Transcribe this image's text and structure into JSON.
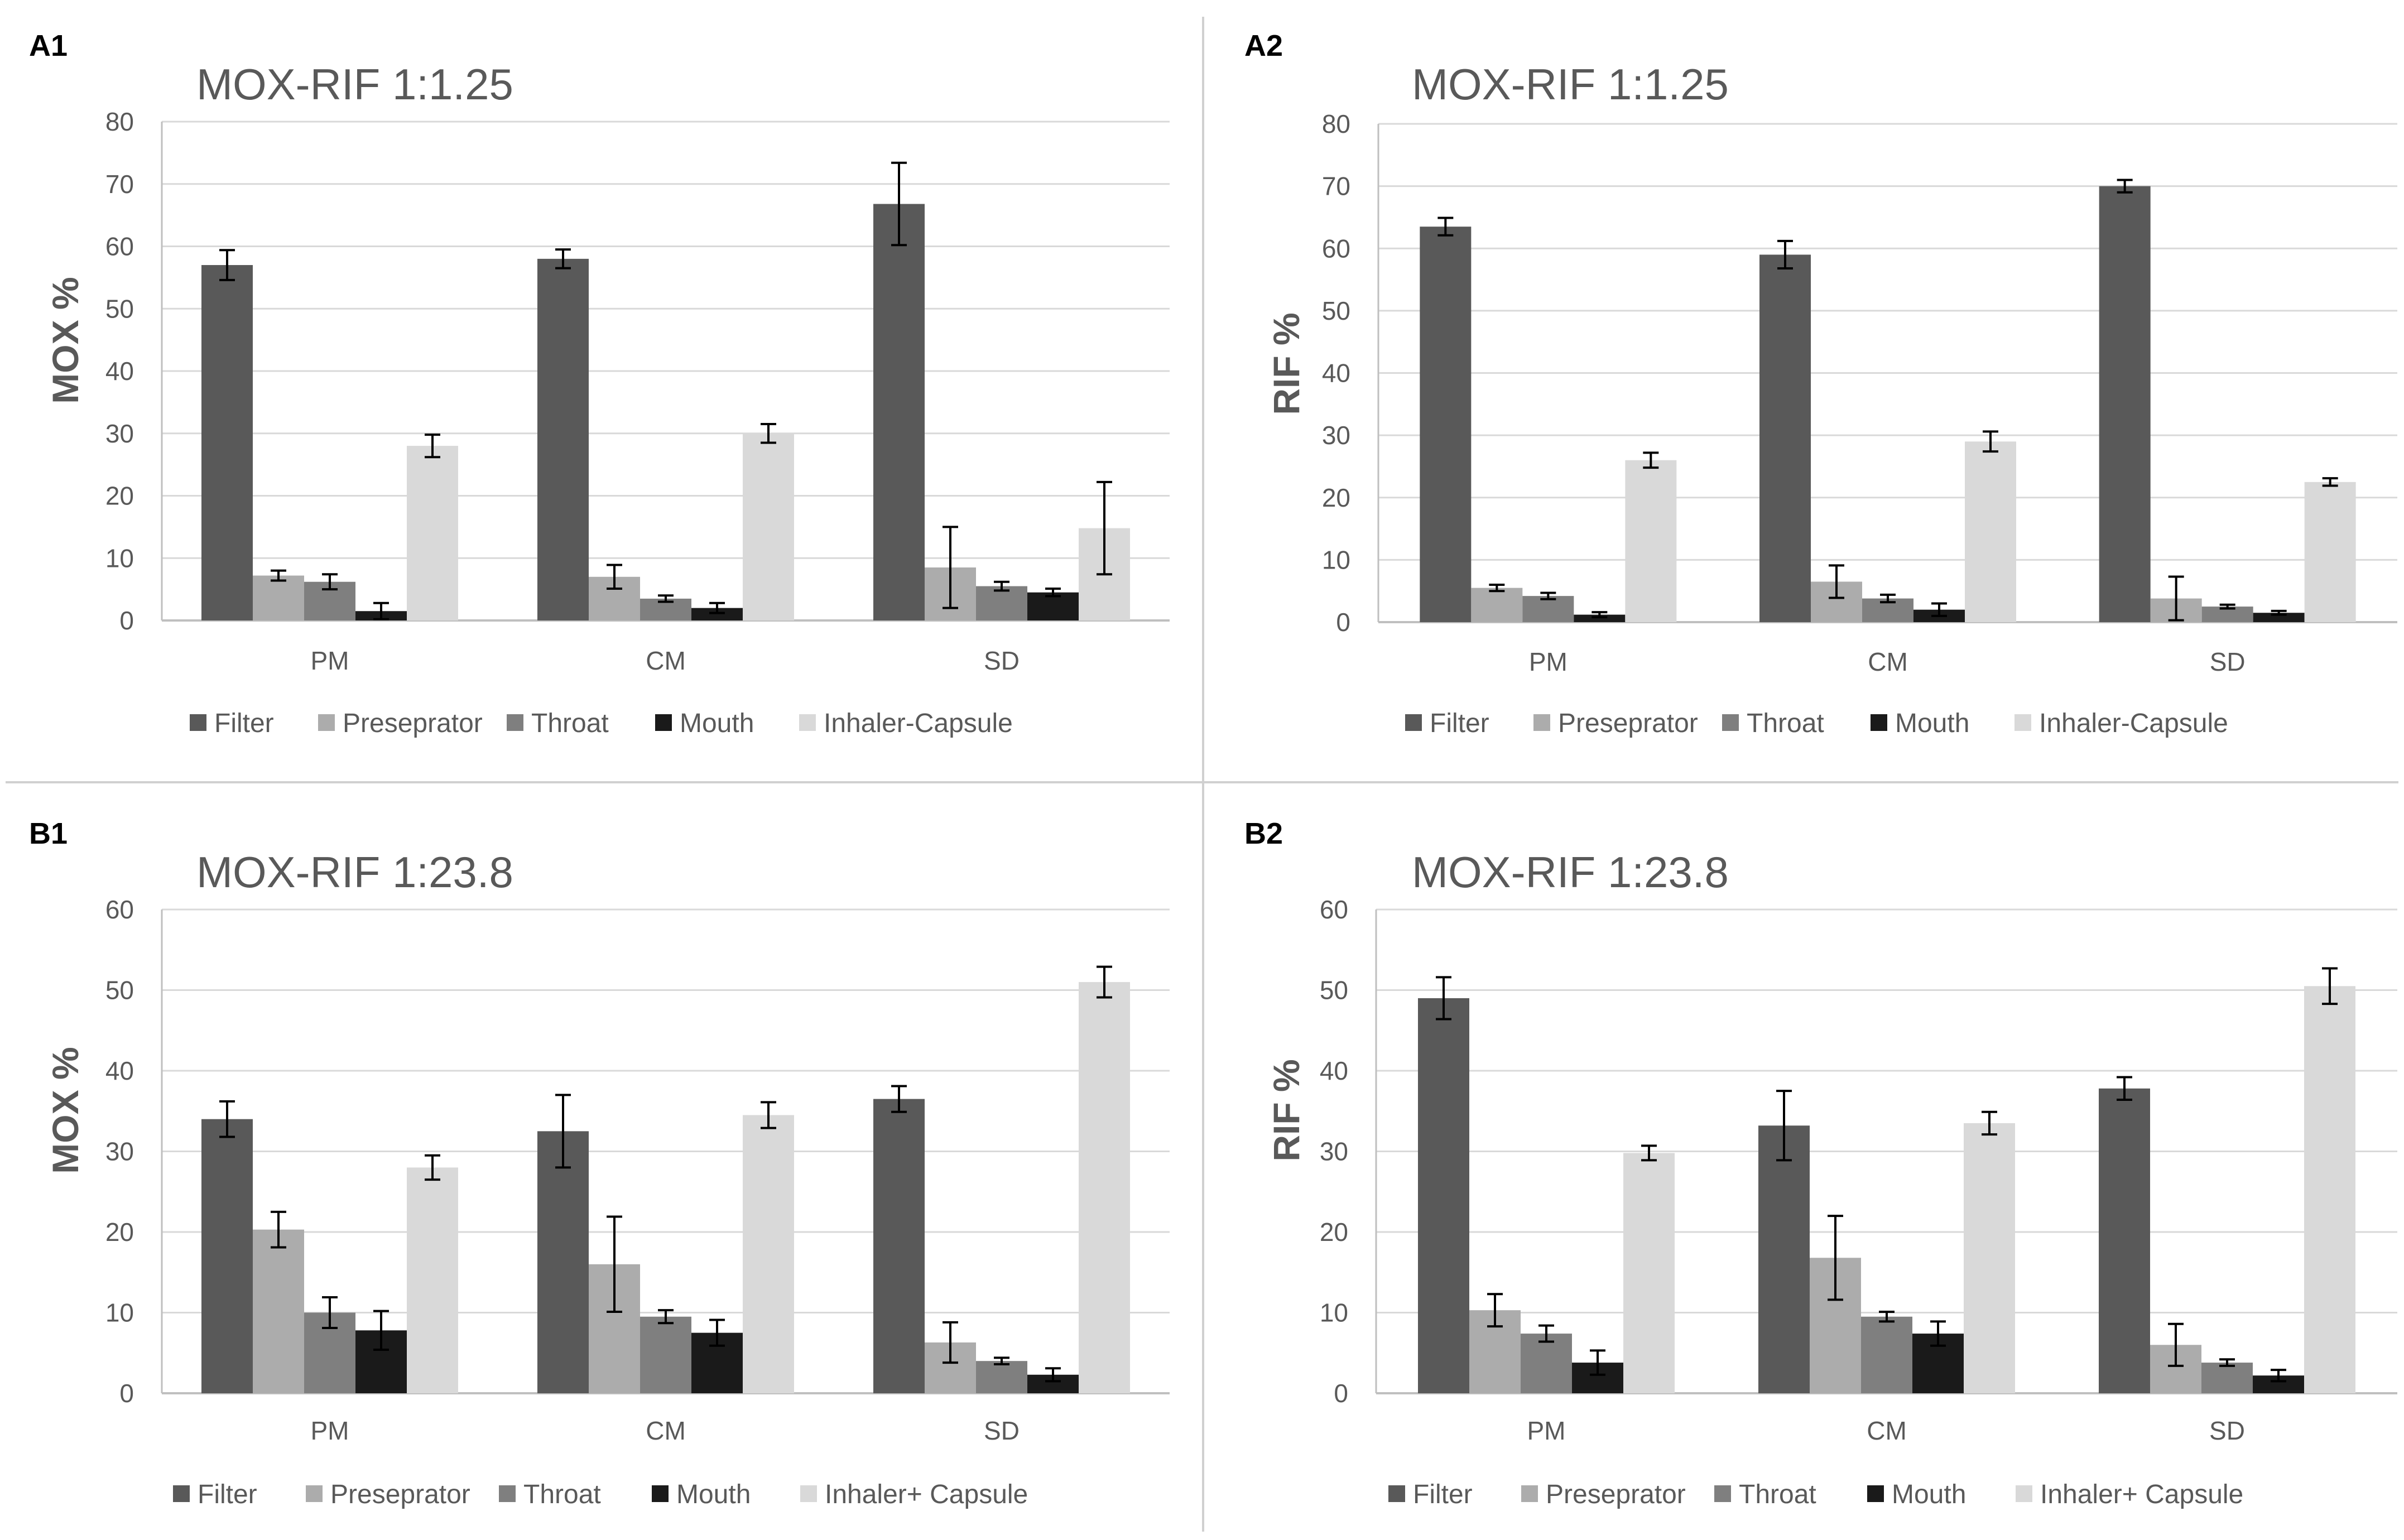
{
  "colors": {
    "Filter": "#595959",
    "Preseprator": "#acacac",
    "Throat": "#7f7f7f",
    "Mouth": "#1a1a1a",
    "Inhaler": "#d9d9d9",
    "grid": "#d9d9d9",
    "axis": "#bfbfbf",
    "divider": "#d0d0d0"
  },
  "chart_data": [
    {
      "panel": "A1",
      "type": "bar",
      "title": "MOX-RIF 1:1.25",
      "ylabel": "MOX  %",
      "xlabel": "",
      "ylim": [
        0,
        80
      ],
      "yticks": [
        0,
        10,
        20,
        30,
        40,
        50,
        60,
        70,
        80
      ],
      "categories": [
        "PM",
        "CM",
        "SD"
      ],
      "legend_position": "bottom",
      "series": [
        {
          "name": "Filter",
          "values": [
            57.0,
            58.0,
            66.8
          ],
          "errors": [
            2.4,
            1.5,
            6.6
          ]
        },
        {
          "name": "Preseprator",
          "values": [
            7.2,
            7.0,
            8.5
          ],
          "errors": [
            0.8,
            1.9,
            6.5
          ]
        },
        {
          "name": "Throat",
          "values": [
            6.2,
            3.5,
            5.5
          ],
          "errors": [
            1.2,
            0.5,
            0.7
          ]
        },
        {
          "name": "Mouth",
          "values": [
            1.5,
            2.0,
            4.5
          ],
          "errors": [
            1.3,
            0.8,
            0.6
          ]
        },
        {
          "name": "Inhaler-Capsule",
          "values": [
            28.0,
            30.0,
            14.8
          ],
          "errors": [
            1.8,
            1.5,
            7.4
          ]
        }
      ]
    },
    {
      "panel": "A2",
      "type": "bar",
      "title": "MOX-RIF 1:1.25",
      "ylabel": "RIF %",
      "xlabel": "",
      "ylim": [
        0,
        80
      ],
      "yticks": [
        0,
        10,
        20,
        30,
        40,
        50,
        60,
        70,
        80
      ],
      "categories": [
        "PM",
        "CM",
        "SD"
      ],
      "legend_position": "bottom",
      "series": [
        {
          "name": "Filter",
          "values": [
            63.5,
            59.0,
            70.0
          ],
          "errors": [
            1.4,
            2.2,
            1.0
          ]
        },
        {
          "name": "Preseprator",
          "values": [
            5.5,
            6.5,
            3.8
          ],
          "errors": [
            0.5,
            2.6,
            3.5
          ]
        },
        {
          "name": "Throat",
          "values": [
            4.2,
            3.8,
            2.5
          ],
          "errors": [
            0.5,
            0.6,
            0.3
          ]
        },
        {
          "name": "Mouth",
          "values": [
            1.2,
            2.0,
            1.5
          ],
          "errors": [
            0.4,
            1.0,
            0.3
          ]
        },
        {
          "name": "Inhaler-Capsule",
          "values": [
            26.0,
            29.0,
            22.5
          ],
          "errors": [
            1.2,
            1.6,
            0.6
          ]
        }
      ]
    },
    {
      "panel": "B1",
      "type": "bar",
      "title": "MOX-RIF 1:23.8",
      "ylabel": "MOX  %",
      "xlabel": "",
      "ylim": [
        0,
        60
      ],
      "yticks": [
        0,
        10,
        20,
        30,
        40,
        50,
        60
      ],
      "categories": [
        "PM",
        "CM",
        "SD"
      ],
      "legend_position": "bottom",
      "series": [
        {
          "name": "Filter",
          "values": [
            34.0,
            32.5,
            36.5
          ],
          "errors": [
            2.2,
            4.5,
            1.6
          ]
        },
        {
          "name": "Preseprator",
          "values": [
            20.3,
            16.0,
            6.3
          ],
          "errors": [
            2.2,
            5.9,
            2.5
          ]
        },
        {
          "name": "Throat",
          "values": [
            10.0,
            9.5,
            4.0
          ],
          "errors": [
            1.9,
            0.8,
            0.4
          ]
        },
        {
          "name": "Mouth",
          "values": [
            7.8,
            7.5,
            2.3
          ],
          "errors": [
            2.4,
            1.6,
            0.8
          ]
        },
        {
          "name": "Inhaler+ Capsule",
          "values": [
            28.0,
            34.5,
            51.0
          ],
          "errors": [
            1.5,
            1.6,
            1.9
          ]
        }
      ]
    },
    {
      "panel": "B2",
      "type": "bar",
      "title": "MOX-RIF 1:23.8",
      "ylabel": "RIF %",
      "xlabel": "",
      "ylim": [
        0,
        60
      ],
      "yticks": [
        0,
        10,
        20,
        30,
        40,
        50,
        60
      ],
      "categories": [
        "PM",
        "CM",
        "SD"
      ],
      "legend_position": "bottom",
      "series": [
        {
          "name": "Filter",
          "values": [
            49.0,
            33.2,
            37.8
          ],
          "errors": [
            2.6,
            4.3,
            1.4
          ]
        },
        {
          "name": "Preseprator",
          "values": [
            10.3,
            16.8,
            6.0
          ],
          "errors": [
            2.0,
            5.2,
            2.6
          ]
        },
        {
          "name": "Throat",
          "values": [
            7.4,
            9.5,
            3.8
          ],
          "errors": [
            1.0,
            0.6,
            0.4
          ]
        },
        {
          "name": "Mouth",
          "values": [
            3.8,
            7.4,
            2.2
          ],
          "errors": [
            1.5,
            1.5,
            0.7
          ]
        },
        {
          "name": "Inhaler+ Capsule",
          "values": [
            29.8,
            33.5,
            50.5
          ],
          "errors": [
            0.9,
            1.4,
            2.2
          ]
        }
      ]
    }
  ]
}
